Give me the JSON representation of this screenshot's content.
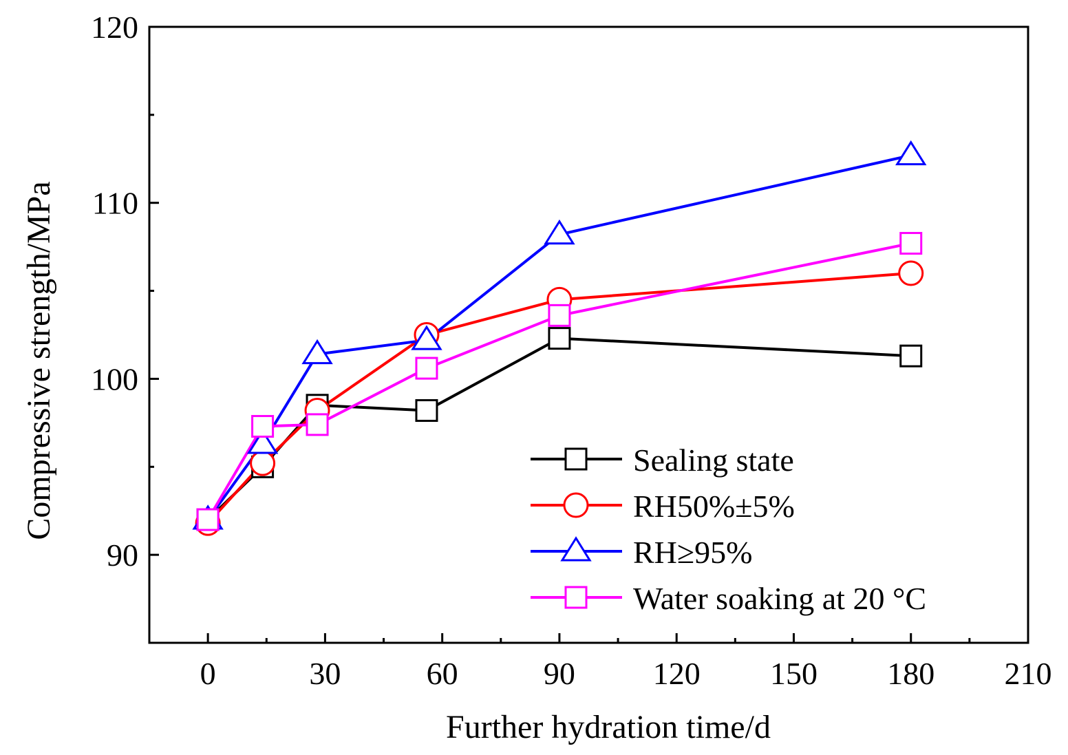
{
  "chart_data": {
    "type": "line",
    "title": "",
    "xlabel": "Further hydration time/d",
    "ylabel": "Compressive strength/MPa",
    "xlim": [
      -15,
      210
    ],
    "ylim": [
      85,
      120
    ],
    "xticks": [
      0,
      30,
      60,
      90,
      120,
      150,
      180,
      210
    ],
    "xtick_labels": [
      "0",
      "30",
      "60",
      "90",
      "120",
      "150",
      "180",
      "210"
    ],
    "yticks": [
      90,
      100,
      110,
      120
    ],
    "ytick_labels": [
      "90",
      "100",
      "110",
      "120"
    ],
    "x": [
      0,
      14,
      28,
      56,
      90,
      180
    ],
    "legend_position": "bottom-right",
    "series": [
      {
        "name": "Sealing state",
        "color": "#000000",
        "marker": "square",
        "values": [
          92.0,
          95.0,
          98.5,
          98.2,
          102.3,
          101.3
        ]
      },
      {
        "name": "RH50%±5%",
        "color": "#ff0000",
        "marker": "circle",
        "values": [
          91.8,
          95.2,
          98.2,
          102.5,
          104.5,
          106.0
        ]
      },
      {
        "name": "RH≥95%",
        "color": "#0000ff",
        "marker": "triangle",
        "values": [
          92.0,
          96.3,
          101.4,
          102.2,
          108.2,
          112.7
        ]
      },
      {
        "name": "Water soaking at 20 °C",
        "color": "#ff00ff",
        "marker": "square",
        "values": [
          92.0,
          97.3,
          97.4,
          100.6,
          103.6,
          107.7
        ]
      }
    ]
  }
}
